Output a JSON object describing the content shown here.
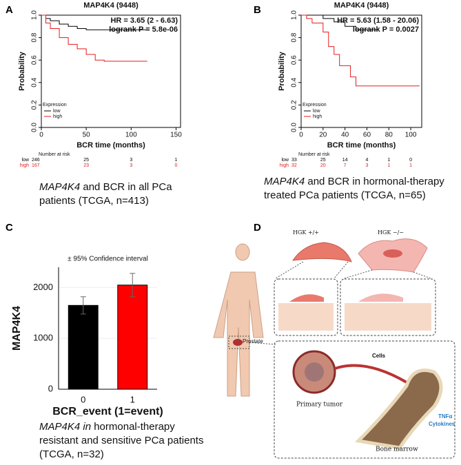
{
  "panels": {
    "a": "A",
    "b": "B",
    "c": "C",
    "d": "D"
  },
  "captions": [
    {
      "gene": "MAP4K4",
      "text": " and BCR in all PCa patients (TCGA, n=413)"
    },
    {
      "gene": "MAP4K4",
      "text": " and BCR in hormonal-therapy treated PCa patients (TCGA, n=65)"
    },
    {
      "gene": "MAP4K4 in",
      "text": " hormonal-therapy resistant and sensitive PCa patients (TCGA, n=32)"
    }
  ],
  "chart_data": [
    {
      "type": "km",
      "title": "MAP4K4 (9448)",
      "x_label": "BCR time (months)",
      "y_label": "Probability",
      "annotations": [
        "HR = 3.65 (2 - 6.63)",
        "logrank P = 5.8e-06"
      ],
      "legend_title": "Expression",
      "xlim": [
        0,
        155
      ],
      "xticks": [
        0,
        50,
        100,
        150
      ],
      "ylim": [
        0,
        1
      ],
      "yticks": [
        {
          "value": 0,
          "label": "0.0"
        },
        {
          "value": 0.2,
          "label": "0.2"
        },
        {
          "value": 0.4,
          "label": "0.4"
        },
        {
          "value": 0.6,
          "label": "0.6"
        },
        {
          "value": 0.8,
          "label": "0.8"
        },
        {
          "value": 1,
          "label": "1.0"
        }
      ],
      "series": [
        {
          "name": "low",
          "color": "#000000",
          "x": [
            0,
            5,
            10,
            20,
            30,
            40,
            50,
            120
          ],
          "values": [
            1,
            0.97,
            0.95,
            0.92,
            0.9,
            0.88,
            0.87,
            0.87
          ]
        },
        {
          "name": "high",
          "color": "#e41a1c",
          "x": [
            0,
            5,
            10,
            20,
            30,
            40,
            50,
            60,
            70,
            118
          ],
          "values": [
            1,
            0.93,
            0.88,
            0.8,
            0.74,
            0.7,
            0.65,
            0.6,
            0.59,
            0.59
          ]
        }
      ],
      "risk_title": "Number at risk",
      "risk": [
        [
          246,
          25,
          3,
          1
        ],
        [
          167,
          23,
          3,
          0
        ]
      ]
    },
    {
      "type": "km",
      "title": "MAP4K4 (9448)",
      "x_label": "BCR time (months)",
      "y_label": "Probability",
      "annotations": [
        "HR = 5.63 (1.58 - 20.06)",
        "logrank P = 0.0027"
      ],
      "legend_title": "Expression",
      "xlim": [
        0,
        110
      ],
      "xticks": [
        0,
        20,
        40,
        60,
        80,
        100
      ],
      "ylim": [
        0,
        1
      ],
      "yticks": [
        {
          "value": 0,
          "label": "0.0"
        },
        {
          "value": 0.2,
          "label": "0.2"
        },
        {
          "value": 0.4,
          "label": "0.4"
        },
        {
          "value": 0.6,
          "label": "0.6"
        },
        {
          "value": 0.8,
          "label": "0.8"
        },
        {
          "value": 1,
          "label": "1.0"
        }
      ],
      "series": [
        {
          "name": "low",
          "color": "#000000",
          "x": [
            0,
            20,
            30,
            40,
            50,
            70
          ],
          "values": [
            1,
            0.97,
            0.94,
            0.9,
            0.87,
            0.87
          ]
        },
        {
          "name": "high",
          "color": "#e41a1c",
          "x": [
            0,
            5,
            10,
            20,
            25,
            30,
            35,
            45,
            50,
            108
          ],
          "values": [
            1,
            0.97,
            0.93,
            0.85,
            0.72,
            0.65,
            0.55,
            0.45,
            0.37,
            0.37
          ]
        }
      ],
      "risk_title": "Number at risk",
      "risk": [
        [
          33,
          25,
          14,
          4,
          1,
          0
        ],
        [
          32,
          20,
          7,
          3,
          1,
          1
        ]
      ]
    },
    {
      "type": "bar",
      "subtitle": "± 95% Confidence interval",
      "x_label": "BCR_event (1=event)",
      "y_label": "MAP4K4",
      "categories": [
        "0",
        "1"
      ],
      "values": [
        1650,
        2050
      ],
      "errors": [
        170,
        230
      ],
      "colors": [
        "#000000",
        "#ff0000"
      ],
      "ylim": [
        0,
        2400
      ],
      "yticks": [
        0,
        1000,
        2000
      ],
      "grid": true
    }
  ],
  "illustration": {
    "wt": "HGK +/+",
    "ko": "HGK −/−",
    "prostate": "Prostate",
    "cells": "Cells",
    "tumor": "Primary tumor",
    "tnf": "TNFα",
    "cyto": "Cytokines",
    "marrow": "Bone marrow"
  }
}
